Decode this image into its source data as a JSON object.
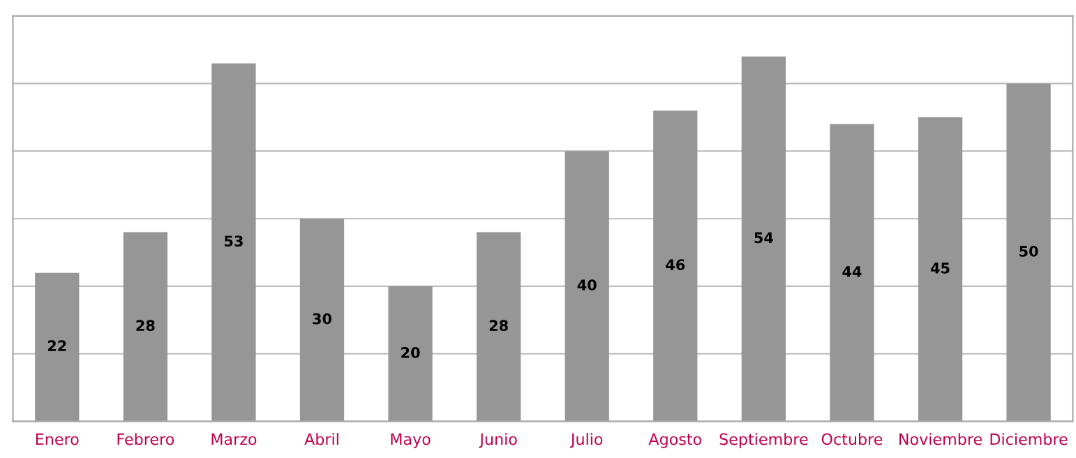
{
  "chart_data": {
    "type": "bar",
    "categories": [
      "Enero",
      "Febrero",
      "Marzo",
      "Abril",
      "Mayo",
      "Junio",
      "Julio",
      "Agosto",
      "Septiembre",
      "Octubre",
      "Noviembre",
      "Diciembre"
    ],
    "values": [
      22,
      28,
      53,
      30,
      20,
      28,
      40,
      46,
      54,
      44,
      45,
      50
    ],
    "color": "#969696",
    "ylim": [
      0,
      60
    ],
    "yticks": [
      {
        "value": 0,
        "label": null
      },
      {
        "value": 10,
        "label": null
      },
      {
        "value": 20,
        "label": null
      },
      {
        "value": 30,
        "label": null
      },
      {
        "value": 40,
        "label": null
      },
      {
        "value": 50,
        "label": null
      },
      {
        "value": 60,
        "label": null
      }
    ],
    "tick_labels": "x",
    "grid": "y",
    "data_labels": true
  }
}
